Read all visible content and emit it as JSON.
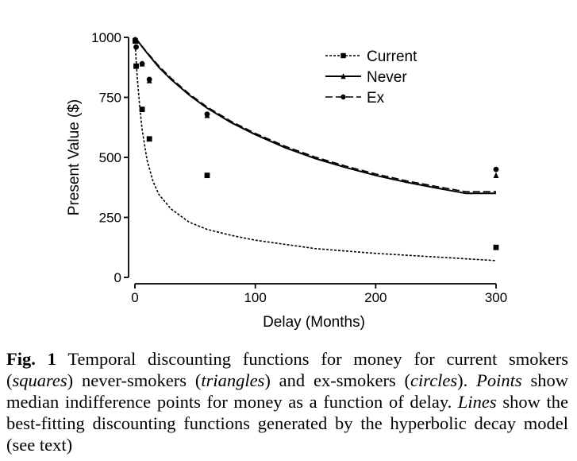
{
  "chart_data": {
    "type": "scatter",
    "xlabel": "Delay (Months)",
    "ylabel": "Present Value ($)",
    "xlim": [
      0,
      300
    ],
    "ylim": [
      0,
      1000
    ],
    "xticks": [
      "0",
      "100",
      "200",
      "300"
    ],
    "yticks": [
      "0",
      "250",
      "500",
      "750",
      "1000"
    ],
    "grid": false,
    "legend_position": "top-right",
    "series": [
      {
        "name": "Current",
        "marker": "square",
        "line_style": "dotted",
        "points": [
          {
            "x": 0.25,
            "y": 985
          },
          {
            "x": 1,
            "y": 880
          },
          {
            "x": 6,
            "y": 700
          },
          {
            "x": 12,
            "y": 577
          },
          {
            "x": 60,
            "y": 425
          },
          {
            "x": 300,
            "y": 125
          }
        ],
        "fit": [
          {
            "x": 0,
            "y": 1000
          },
          {
            "x": 1,
            "y": 905
          },
          {
            "x": 2,
            "y": 830
          },
          {
            "x": 4,
            "y": 710
          },
          {
            "x": 6,
            "y": 615
          },
          {
            "x": 10,
            "y": 490
          },
          {
            "x": 15,
            "y": 400
          },
          {
            "x": 20,
            "y": 345
          },
          {
            "x": 30,
            "y": 285
          },
          {
            "x": 45,
            "y": 230
          },
          {
            "x": 60,
            "y": 200
          },
          {
            "x": 80,
            "y": 175
          },
          {
            "x": 100,
            "y": 155
          },
          {
            "x": 150,
            "y": 120
          },
          {
            "x": 200,
            "y": 100
          },
          {
            "x": 250,
            "y": 85
          },
          {
            "x": 300,
            "y": 70
          }
        ]
      },
      {
        "name": "Never",
        "marker": "triangle",
        "line_style": "solid",
        "points": [
          {
            "x": 0.25,
            "y": 990
          },
          {
            "x": 1,
            "y": 985
          },
          {
            "x": 6,
            "y": 890
          },
          {
            "x": 12,
            "y": 820
          },
          {
            "x": 60,
            "y": 675
          },
          {
            "x": 300,
            "y": 425
          }
        ],
        "fit": [
          {
            "x": 0,
            "y": 1000
          },
          {
            "x": 10,
            "y": 935
          },
          {
            "x": 20,
            "y": 875
          },
          {
            "x": 30,
            "y": 825
          },
          {
            "x": 45,
            "y": 760
          },
          {
            "x": 60,
            "y": 705
          },
          {
            "x": 80,
            "y": 645
          },
          {
            "x": 100,
            "y": 595
          },
          {
            "x": 125,
            "y": 540
          },
          {
            "x": 150,
            "y": 495
          },
          {
            "x": 175,
            "y": 458
          },
          {
            "x": 200,
            "y": 425
          },
          {
            "x": 225,
            "y": 397
          },
          {
            "x": 250,
            "y": 373
          },
          {
            "x": 275,
            "y": 350
          },
          {
            "x": 300,
            "y": 350
          }
        ]
      },
      {
        "name": "Ex",
        "marker": "circle",
        "line_style": "dashed",
        "points": [
          {
            "x": 0.25,
            "y": 990
          },
          {
            "x": 1,
            "y": 960
          },
          {
            "x": 6,
            "y": 890
          },
          {
            "x": 12,
            "y": 825
          },
          {
            "x": 60,
            "y": 680
          },
          {
            "x": 300,
            "y": 450
          }
        ],
        "fit": [
          {
            "x": 0,
            "y": 1000
          },
          {
            "x": 10,
            "y": 938
          },
          {
            "x": 20,
            "y": 880
          },
          {
            "x": 30,
            "y": 830
          },
          {
            "x": 45,
            "y": 765
          },
          {
            "x": 60,
            "y": 710
          },
          {
            "x": 80,
            "y": 650
          },
          {
            "x": 100,
            "y": 600
          },
          {
            "x": 125,
            "y": 546
          },
          {
            "x": 150,
            "y": 501
          },
          {
            "x": 175,
            "y": 464
          },
          {
            "x": 200,
            "y": 431
          },
          {
            "x": 225,
            "y": 403
          },
          {
            "x": 250,
            "y": 379
          },
          {
            "x": 275,
            "y": 357
          },
          {
            "x": 300,
            "y": 357
          }
        ]
      }
    ]
  },
  "caption": {
    "fig_label": "Fig. 1",
    "text_1": " Temporal discounting functions for money for current smokers (",
    "squares": "squares",
    "text_2": ") never-smokers (",
    "triangles": "triangles",
    "text_3": ") and ex-smokers (",
    "circles": "circles",
    "text_4": "). ",
    "points": "Points",
    "text_5": " show median indifference points for money as a function of delay. ",
    "lines": "Lines",
    "text_6": " show the best-fitting discounting functions generated by the hyperbolic decay model (see text)"
  }
}
